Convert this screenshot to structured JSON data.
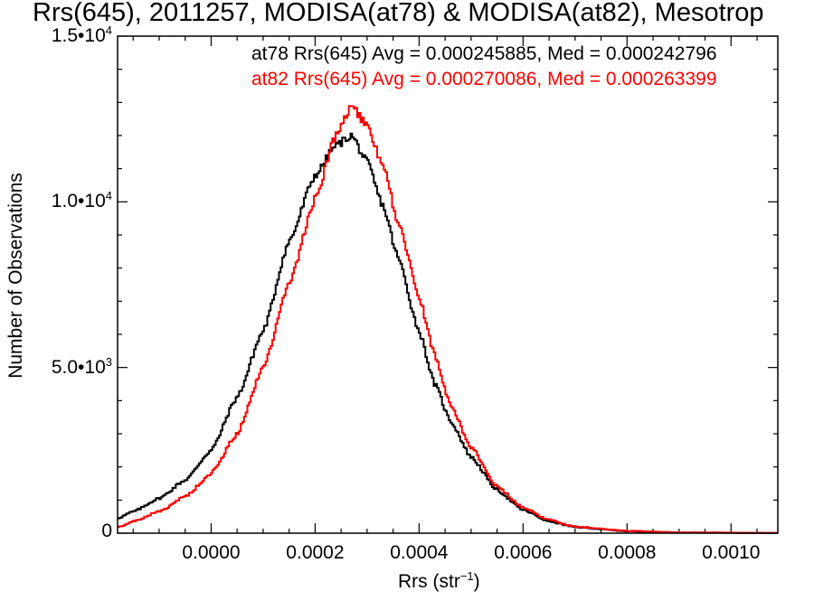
{
  "chart_data": {
    "type": "line",
    "title": "Rrs(645), 2011257, MODISA(at78) & MODISA(at82), Mesotrop",
    "xlabel": "Rrs (str",
    "xlabel_superscript": "−1",
    "xlabel_close": ")",
    "ylabel": "Number of Observations",
    "xlim": [
      -0.00018,
      0.00109
    ],
    "ylim": [
      0,
      15000
    ],
    "x_ticks": [
      {
        "value": 0.0,
        "label": "0.0000"
      },
      {
        "value": 0.0002,
        "label": "0.0002"
      },
      {
        "value": 0.0004,
        "label": "0.0004"
      },
      {
        "value": 0.0006,
        "label": "0.0006"
      },
      {
        "value": 0.0008,
        "label": "0.0008"
      },
      {
        "value": 0.001,
        "label": "0.0010"
      }
    ],
    "y_ticks": [
      {
        "value": 0,
        "mantissa": "0",
        "exp": ""
      },
      {
        "value": 5000,
        "mantissa": "5.0•10",
        "exp": "3"
      },
      {
        "value": 10000,
        "mantissa": "1.0•10",
        "exp": "4"
      },
      {
        "value": 15000,
        "mantissa": "1.5•10",
        "exp": "4"
      }
    ],
    "legend": [
      {
        "text": "at78 Rrs(645) Avg = 0.000245885, Med = 0.000242796",
        "color": "#000000"
      },
      {
        "text": "at82 Rrs(645) Avg = 0.000270086, Med = 0.000263399",
        "color": "#ff0000"
      }
    ],
    "series": [
      {
        "color": "#000000",
        "points": [
          [
            -0.00018,
            450
          ],
          [
            -0.00015,
            650
          ],
          [
            -0.0001,
            1050
          ],
          [
            -5e-05,
            1600
          ],
          [
            0.0,
            2500
          ],
          [
            5e-05,
            4100
          ],
          [
            0.0001,
            6100
          ],
          [
            0.00015,
            8800
          ],
          [
            0.0002,
            10800
          ],
          [
            0.00024,
            11700
          ],
          [
            0.00027,
            12000
          ],
          [
            0.0003,
            11200
          ],
          [
            0.00033,
            9900
          ],
          [
            0.00036,
            8300
          ],
          [
            0.0004,
            6100
          ],
          [
            0.00043,
            4500
          ],
          [
            0.00046,
            3400
          ],
          [
            0.0005,
            2300
          ],
          [
            0.00055,
            1300
          ],
          [
            0.0006,
            700
          ],
          [
            0.00065,
            360
          ],
          [
            0.0007,
            180
          ],
          [
            0.0008,
            60
          ],
          [
            0.0009,
            20
          ],
          [
            0.00109,
            5
          ]
        ]
      },
      {
        "color": "#ff0000",
        "points": [
          [
            -0.00018,
            180
          ],
          [
            -0.00015,
            350
          ],
          [
            -0.0001,
            650
          ],
          [
            -5e-05,
            1100
          ],
          [
            0.0,
            1800
          ],
          [
            5e-05,
            3000
          ],
          [
            0.0001,
            5000
          ],
          [
            0.00015,
            7500
          ],
          [
            0.0002,
            10100
          ],
          [
            0.00024,
            12000
          ],
          [
            0.00027,
            12900
          ],
          [
            0.0003,
            12300
          ],
          [
            0.00033,
            11100
          ],
          [
            0.00036,
            9400
          ],
          [
            0.0004,
            7100
          ],
          [
            0.00043,
            5400
          ],
          [
            0.00046,
            3900
          ],
          [
            0.0005,
            2600
          ],
          [
            0.00055,
            1400
          ],
          [
            0.0006,
            780
          ],
          [
            0.00065,
            400
          ],
          [
            0.0007,
            200
          ],
          [
            0.0008,
            70
          ],
          [
            0.0009,
            22
          ],
          [
            0.00109,
            5
          ]
        ]
      }
    ]
  }
}
